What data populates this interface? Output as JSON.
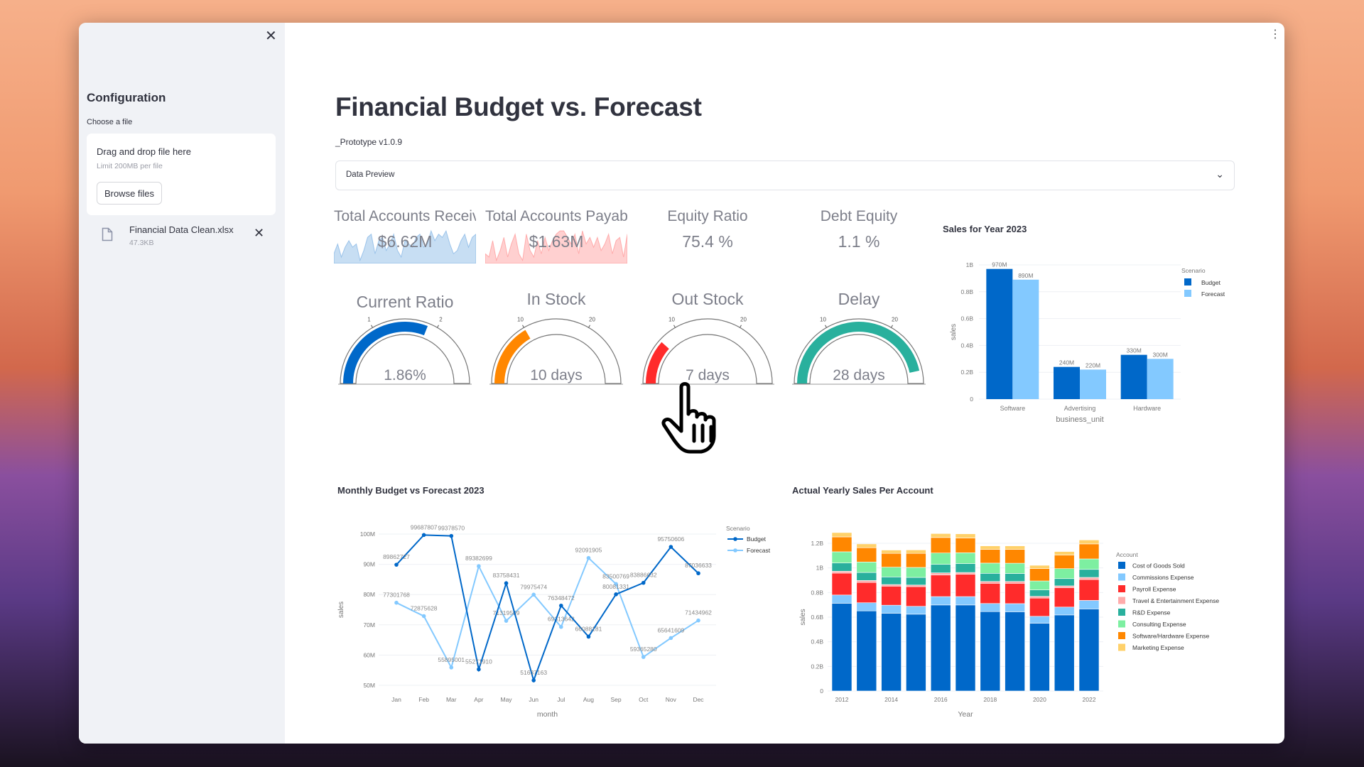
{
  "sidebar": {
    "close_icon": "close-icon",
    "title": "Configuration",
    "choose_label": "Choose a file",
    "upload": {
      "drag_text": "Drag and drop file here",
      "limit_text": "Limit 200MB per file",
      "browse_label": "Browse files"
    },
    "file": {
      "name": "Financial Data Clean.xlsx",
      "size": "47.3KB"
    }
  },
  "main": {
    "title": "Financial Budget vs. Forecast",
    "subtitle": "_Prototype v1.0.9",
    "expander_label": "Data Preview",
    "kpis": [
      {
        "title": "Total Accounts Receivable",
        "value": "$6.62M",
        "color": "#0068c9",
        "sparkline": [
          3,
          6,
          2,
          5,
          7,
          5,
          6,
          1,
          4,
          8,
          9,
          3,
          7,
          8,
          4,
          6,
          9,
          4,
          2,
          7,
          6,
          5,
          8,
          9,
          5,
          6,
          10,
          7,
          9,
          8,
          10,
          6,
          3,
          4,
          7,
          9,
          5,
          8,
          9
        ]
      },
      {
        "title": "Total Accounts Payable",
        "value": "$1.63M",
        "color": "#ff2b2b",
        "sparkline": [
          3,
          2,
          7,
          1,
          4,
          8,
          2,
          6,
          9,
          3,
          1,
          9,
          4,
          2,
          7,
          3,
          8,
          4,
          7,
          9,
          10,
          10,
          8,
          6,
          9,
          3,
          10,
          6,
          8,
          5,
          8,
          4,
          6,
          9,
          3,
          7,
          8,
          2,
          9
        ]
      },
      {
        "title": "Equity Ratio",
        "value": "75.4 %"
      },
      {
        "title": "Debt Equity",
        "value": "1.1 %"
      }
    ],
    "gauges": [
      {
        "title": "Current Ratio",
        "value": 1.86,
        "display": "1.86%",
        "range": [
          0,
          3
        ],
        "ticks": [
          "1",
          "2"
        ],
        "color": "#0068c9"
      },
      {
        "title": "In Stock",
        "value": 10,
        "display": "10 days",
        "range": [
          0,
          30
        ],
        "ticks": [
          "10",
          "20"
        ],
        "color": "#ff8700"
      },
      {
        "title": "Out Stock",
        "value": 7,
        "display": "7 days",
        "range": [
          0,
          30
        ],
        "ticks": [
          "10",
          "20"
        ],
        "color": "#ff2b2b"
      },
      {
        "title": "Delay",
        "value": 28,
        "display": "28 days",
        "range": [
          0,
          30
        ],
        "ticks": [
          "10",
          "20"
        ],
        "color": "#29b09d"
      }
    ]
  },
  "cursor_icon": "hand-pointer-icon",
  "chart_data": [
    {
      "type": "bar",
      "title": "Sales for Year 2023",
      "xlabel": "business_unit",
      "ylabel": "sales",
      "categories": [
        "Software",
        "Advertising",
        "Hardware"
      ],
      "ylim": [
        0,
        1000000000
      ],
      "yticks": [
        "0",
        "0.2B",
        "0.4B",
        "0.6B",
        "0.8B",
        "1B"
      ],
      "legend_title": "Scenario",
      "legend": "top-right",
      "series": [
        {
          "name": "Budget",
          "color": "#0068c9",
          "values": [
            970000000,
            240000000,
            330000000
          ],
          "labels": [
            "970M",
            "240M",
            "330M"
          ]
        },
        {
          "name": "Forecast",
          "color": "#83c9ff",
          "values": [
            890000000,
            220000000,
            300000000
          ],
          "labels": [
            "890M",
            "220M",
            "300M"
          ]
        }
      ]
    },
    {
      "type": "line",
      "title": "Monthly Budget vs Forecast 2023",
      "xlabel": "month",
      "ylabel": "sales",
      "categories": [
        "Jan",
        "Feb",
        "Mar",
        "Apr",
        "May",
        "Jun",
        "Jul",
        "Aug",
        "Sep",
        "Oct",
        "Nov",
        "Dec"
      ],
      "yticks": [
        "50M",
        "60M",
        "70M",
        "80M",
        "90M",
        "100M"
      ],
      "legend_title": "Scenario",
      "legend": "top-right",
      "series": [
        {
          "name": "Budget",
          "color": "#0068c9",
          "values": [
            89862727,
            99687807,
            99378570,
            55271910,
            83758431,
            51637163,
            76348472,
            66088181,
            80081331,
            83886632,
            95750606,
            87036633
          ]
        },
        {
          "name": "Forecast",
          "color": "#83c9ff",
          "values": [
            77301768,
            72875628,
            55895001,
            89382699,
            71319509,
            79975474,
            69313642,
            92091905,
            83500769,
            59365280,
            65641609,
            71434962
          ]
        }
      ]
    },
    {
      "type": "bar",
      "stacked": true,
      "title": "Actual Yearly Sales Per Account",
      "xlabel": "Year",
      "ylabel": "sales",
      "categories": [
        2012,
        2013,
        2014,
        2015,
        2016,
        2017,
        2018,
        2019,
        2020,
        2021,
        2022
      ],
      "xticks": [
        "2012",
        "2014",
        "2016",
        "2018",
        "2020",
        "2022"
      ],
      "yticks": [
        "0",
        "0.2B",
        "0.4B",
        "0.6B",
        "0.8B",
        "1B",
        "1.2B"
      ],
      "legend_title": "Account",
      "legend": "right",
      "unit": "B",
      "series": [
        {
          "name": "Cost of Goods Sold",
          "color": "#0068c9",
          "values": [
            0.713,
            0.651,
            0.632,
            0.624,
            0.699,
            0.699,
            0.645,
            0.644,
            0.551,
            0.618,
            0.667
          ]
        },
        {
          "name": "Commissions Expense",
          "color": "#83c9ff",
          "values": [
            0.067,
            0.066,
            0.065,
            0.064,
            0.068,
            0.068,
            0.066,
            0.066,
            0.056,
            0.064,
            0.069
          ]
        },
        {
          "name": "Payroll Expense",
          "color": "#ff2b2b",
          "values": [
            0.178,
            0.165,
            0.155,
            0.16,
            0.175,
            0.181,
            0.164,
            0.165,
            0.148,
            0.158,
            0.17
          ]
        },
        {
          "name": "Travel & Entertainment Expense",
          "color": "#ffabab",
          "values": [
            0.015,
            0.016,
            0.013,
            0.013,
            0.018,
            0.015,
            0.015,
            0.015,
            0.014,
            0.014,
            0.017
          ]
        },
        {
          "name": "R&D Expense",
          "color": "#29b09d",
          "values": [
            0.067,
            0.065,
            0.062,
            0.062,
            0.069,
            0.072,
            0.066,
            0.065,
            0.052,
            0.059,
            0.065
          ]
        },
        {
          "name": "Consulting Expense",
          "color": "#7defa1",
          "values": [
            0.091,
            0.085,
            0.079,
            0.081,
            0.092,
            0.088,
            0.083,
            0.083,
            0.073,
            0.081,
            0.085
          ]
        },
        {
          "name": "Software/Hardware Expense",
          "color": "#ff8700",
          "values": [
            0.121,
            0.116,
            0.112,
            0.114,
            0.126,
            0.12,
            0.111,
            0.112,
            0.1,
            0.11,
            0.122
          ]
        },
        {
          "name": "Marketing Expense",
          "color": "#ffd16a",
          "values": [
            0.035,
            0.031,
            0.027,
            0.028,
            0.032,
            0.034,
            0.029,
            0.029,
            0.027,
            0.029,
            0.032
          ]
        }
      ]
    }
  ]
}
